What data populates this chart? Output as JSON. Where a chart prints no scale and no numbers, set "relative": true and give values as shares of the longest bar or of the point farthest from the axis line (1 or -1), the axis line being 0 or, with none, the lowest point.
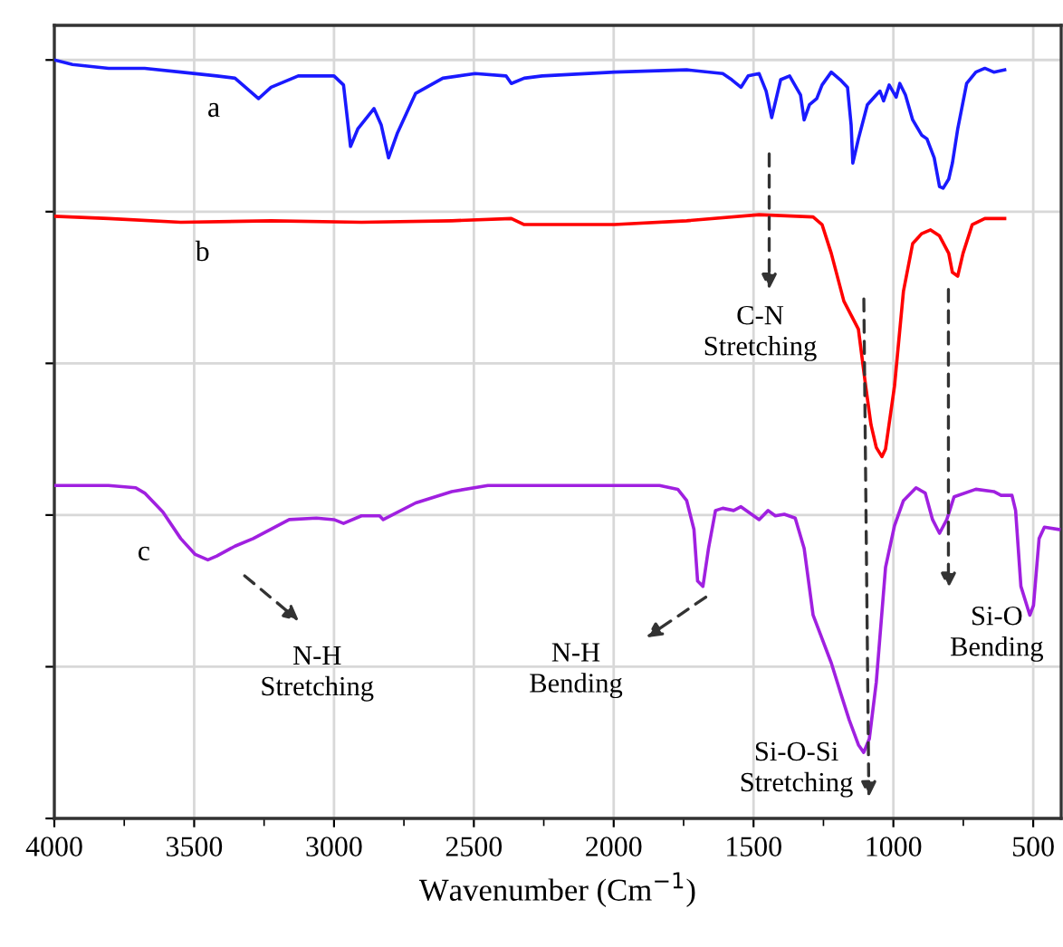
{
  "chart_data": {
    "type": "line",
    "relative": true,
    "xlabel": "Wavenumber (Cm$^{−1}$)",
    "xlim": [
      4000,
      400
    ],
    "xticks": [
      4000,
      3500,
      3000,
      2500,
      2000,
      1500,
      1000,
      500
    ],
    "grid": true,
    "legend": false,
    "tick_labels": "x",
    "line_style": "solid",
    "marker": "none",
    "series": [
      {
        "name": "a",
        "color": "#1a1aff",
        "x": [
          4000,
          3935,
          3806,
          3677,
          3548,
          3419,
          3354,
          3270,
          3225,
          3128,
          3000,
          2966,
          2941,
          2915,
          2857,
          2831,
          2805,
          2773,
          2708,
          2611,
          2495,
          2385,
          2366,
          2320,
          2256,
          1997,
          1739,
          1610,
          1578,
          1545,
          1519,
          1480,
          1455,
          1448,
          1435,
          1403,
          1371,
          1332,
          1319,
          1300,
          1274,
          1255,
          1222,
          1190,
          1164,
          1151,
          1145,
          1125,
          1093,
          1061,
          1048,
          1035,
          1015,
          990,
          977,
          957,
          931,
          899,
          880,
          854,
          835,
          822,
          802,
          789,
          770,
          738,
          705,
          673,
          641,
          602
        ],
        "values": [
          1.0,
          0.994,
          0.989,
          0.989,
          0.984,
          0.979,
          0.976,
          0.949,
          0.964,
          0.979,
          0.979,
          0.967,
          0.886,
          0.909,
          0.936,
          0.914,
          0.871,
          0.904,
          0.956,
          0.976,
          0.982,
          0.979,
          0.969,
          0.976,
          0.979,
          0.984,
          0.987,
          0.982,
          0.974,
          0.964,
          0.979,
          0.982,
          0.959,
          0.947,
          0.924,
          0.974,
          0.979,
          0.954,
          0.921,
          0.941,
          0.949,
          0.967,
          0.984,
          0.974,
          0.964,
          0.914,
          0.864,
          0.896,
          0.941,
          0.954,
          0.959,
          0.946,
          0.967,
          0.951,
          0.969,
          0.954,
          0.921,
          0.901,
          0.896,
          0.871,
          0.833,
          0.831,
          0.843,
          0.864,
          0.909,
          0.969,
          0.984,
          0.989,
          0.984,
          0.987
        ]
      },
      {
        "name": "b",
        "color": "#ff0000",
        "x": [
          4000,
          3806,
          3548,
          3225,
          2902,
          2579,
          2366,
          2320,
          1997,
          1739,
          1480,
          1287,
          1255,
          1222,
          1177,
          1125,
          1099,
          1080,
          1061,
          1041,
          1028,
          996,
          964,
          931,
          899,
          867,
          835,
          802,
          789,
          770,
          751,
          718,
          673,
          602
        ],
        "values": [
          0.794,
          0.791,
          0.786,
          0.788,
          0.786,
          0.788,
          0.791,
          0.783,
          0.783,
          0.788,
          0.796,
          0.793,
          0.783,
          0.745,
          0.682,
          0.645,
          0.57,
          0.519,
          0.489,
          0.477,
          0.487,
          0.57,
          0.695,
          0.758,
          0.771,
          0.776,
          0.768,
          0.745,
          0.72,
          0.715,
          0.745,
          0.783,
          0.791,
          0.791
        ]
      },
      {
        "name": "c",
        "color": "#a020e0",
        "x": [
          4000,
          3806,
          3709,
          3677,
          3612,
          3548,
          3496,
          3451,
          3419,
          3354,
          3289,
          3160,
          3063,
          3000,
          2966,
          2902,
          2837,
          2824,
          2708,
          2579,
          2450,
          2320,
          1997,
          1836,
          1771,
          1739,
          1713,
          1700,
          1681,
          1661,
          1636,
          1610,
          1571,
          1545,
          1480,
          1448,
          1422,
          1390,
          1351,
          1319,
          1287,
          1222,
          1190,
          1158,
          1125,
          1106,
          1086,
          1061,
          1028,
          996,
          964,
          919,
          886,
          860,
          835,
          809,
          783,
          705,
          641,
          615,
          576,
          563,
          544,
          512,
          499,
          479,
          460,
          408
        ],
        "values": [
          0.439,
          0.439,
          0.436,
          0.429,
          0.404,
          0.369,
          0.348,
          0.341,
          0.346,
          0.359,
          0.369,
          0.394,
          0.396,
          0.394,
          0.389,
          0.399,
          0.399,
          0.394,
          0.416,
          0.431,
          0.439,
          0.439,
          0.439,
          0.439,
          0.434,
          0.419,
          0.381,
          0.313,
          0.306,
          0.356,
          0.406,
          0.409,
          0.406,
          0.411,
          0.394,
          0.406,
          0.399,
          0.401,
          0.396,
          0.356,
          0.268,
          0.205,
          0.167,
          0.13,
          0.097,
          0.087,
          0.105,
          0.18,
          0.331,
          0.386,
          0.419,
          0.436,
          0.429,
          0.394,
          0.376,
          0.394,
          0.424,
          0.434,
          0.431,
          0.426,
          0.426,
          0.406,
          0.306,
          0.268,
          0.281,
          0.369,
          0.384,
          0.381
        ]
      }
    ],
    "annotations": [
      "C-N\nStretching",
      "N-H\nStretching",
      "N-H\nBending",
      "Si-O-Si\nStretching",
      "Si-O\nBending"
    ]
  }
}
